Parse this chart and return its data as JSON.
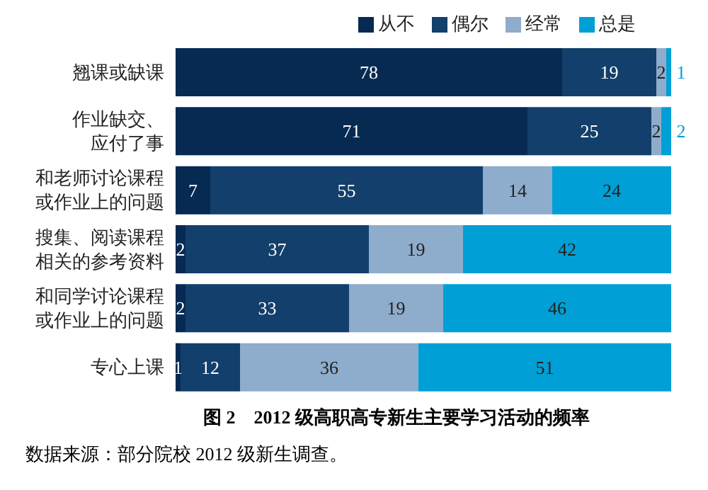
{
  "chart_data": {
    "type": "bar",
    "orientation": "horizontal",
    "stacked": true,
    "title": "图 2　2012 级高职高专新生主要学习活动的频率",
    "annotations": [
      "数据来源：部分院校 2012 级新生调查。"
    ],
    "categories": [
      "翘课或缺课",
      "作业缺交、应付了事",
      "和老师讨论课程或作业上的问题",
      "搜集、阅读课程相关的参考资料",
      "和同学讨论课程或作业上的问题",
      "专心上课"
    ],
    "series": [
      {
        "name": "从不",
        "color": "#062a52",
        "values": [
          78,
          71,
          7,
          2,
          2,
          1
        ]
      },
      {
        "name": "偶尔",
        "color": "#123f6b",
        "values": [
          19,
          25,
          55,
          37,
          33,
          12
        ]
      },
      {
        "name": "经常",
        "color": "#8eaccb",
        "values": [
          2,
          2,
          14,
          19,
          19,
          36
        ]
      },
      {
        "name": "总是",
        "color": "#009fd6",
        "values": [
          1,
          2,
          24,
          42,
          46,
          51
        ]
      }
    ],
    "data_labels": true,
    "legend": "top",
    "tick_labels": "y"
  }
}
